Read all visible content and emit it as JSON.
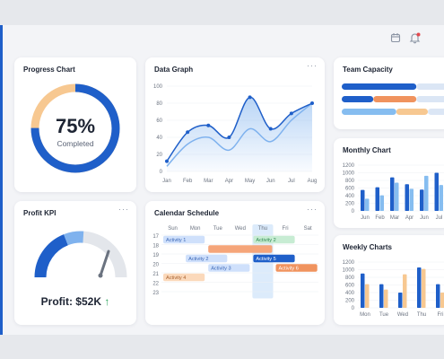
{
  "header": {
    "calendar_icon": "calendar-icon",
    "bell_icon": "bell-icon",
    "notification_color": "#e5484d"
  },
  "progress": {
    "title": "Progress Chart",
    "percent_label": "75%",
    "status_label": "Completed",
    "value": 0.75,
    "colors": {
      "filled": "#1f5fc9",
      "remaining": "#f7c891"
    }
  },
  "data_graph": {
    "title": "Data Graph",
    "more": "···",
    "chart_data": {
      "type": "line",
      "categories": [
        "Jan",
        "Feb",
        "Mar",
        "Apr",
        "May",
        "Jun",
        "Jul",
        "Aug"
      ],
      "ylim": [
        0,
        100
      ],
      "yticks": [
        "100",
        "80",
        "60",
        "40",
        "20",
        "0"
      ],
      "series": [
        {
          "values": [
            12,
            46,
            54,
            40,
            87,
            50,
            68,
            80
          ],
          "color": "#1f5fc9",
          "points": true
        },
        {
          "values": [
            6,
            32,
            40,
            25,
            50,
            35,
            60,
            80
          ],
          "color": "#7fb2ee",
          "points": false
        }
      ]
    }
  },
  "team_capacity": {
    "title": "Team Capacity",
    "bars": [
      {
        "segments": [
          {
            "value": 0.52,
            "color": "#1f5fc9"
          },
          {
            "value": 0.48,
            "color": "#dbe6f5"
          }
        ]
      },
      {
        "segments": [
          {
            "value": 0.22,
            "color": "#1f5fc9"
          },
          {
            "value": 0.3,
            "color": "#f0935e"
          },
          {
            "value": 0.48,
            "color": "#dbe6f5"
          }
        ]
      },
      {
        "segments": [
          {
            "value": 0.38,
            "color": "#86bdf0"
          },
          {
            "value": 0.22,
            "color": "#f7c891"
          },
          {
            "value": 0.4,
            "color": "#dbe6f5"
          }
        ]
      }
    ]
  },
  "monthly_chart": {
    "title": "Monthly Chart",
    "chart_data": {
      "type": "bar",
      "categories": [
        "Jun",
        "Feb",
        "Mar",
        "Apr",
        "Jun",
        "Jul",
        "Oct",
        "Dec"
      ],
      "yticks": [
        "1200",
        "1000",
        "800",
        "600",
        "400",
        "200",
        "0"
      ],
      "ylim": [
        0,
        1200
      ],
      "series": [
        {
          "color": "#1f5fc9",
          "values": [
            550,
            620,
            880,
            700,
            560,
            1000,
            820,
            1200
          ]
        },
        {
          "color": "#86bdf0",
          "values": [
            320,
            410,
            740,
            580,
            920,
            680,
            1080,
            900
          ]
        }
      ]
    }
  },
  "profit_kpi": {
    "title": "Profit KPI",
    "more": "···",
    "label": "Profit: $52K",
    "trend_arrow": "↑",
    "value": 0.52,
    "colors": {
      "dark": "#1f5fc9",
      "light": "#7fb2ee",
      "track": "#e3e6eb",
      "needle": "#6b7380",
      "arrow": "#27a35a"
    }
  },
  "calendar": {
    "title": "Calendar Schedule",
    "more": "···",
    "days": [
      "Sun",
      "Mon",
      "Tue",
      "Wed",
      "Thu",
      "Fri",
      "Sat"
    ],
    "highlight_day": 4,
    "hours": [
      "17",
      "18",
      "19",
      "20",
      "21",
      "22",
      "23"
    ],
    "events": [
      {
        "label": "Activity 1",
        "day": 0,
        "span": 2,
        "row": 0,
        "bg": "#cfe0fb",
        "fg": "#3b67b6"
      },
      {
        "label": "Activity 2",
        "day": 4,
        "span": 2,
        "row": 0,
        "bg": "#c7ecd3",
        "fg": "#2f8a52"
      },
      {
        "label": "",
        "day": 2,
        "span": 3,
        "row": 1,
        "bg": "#f5a57a",
        "fg": "#ffffff"
      },
      {
        "label": "Activity 2",
        "day": 1,
        "span": 2,
        "row": 2,
        "bg": "#cfe0fb",
        "fg": "#3b67b6"
      },
      {
        "label": "Activity 5",
        "day": 4,
        "span": 2,
        "row": 2,
        "bg": "#1f5fc9",
        "fg": "#ffffff"
      },
      {
        "label": "Activity 3",
        "day": 2,
        "span": 2,
        "row": 3,
        "bg": "#cfe0fb",
        "fg": "#3b67b6"
      },
      {
        "label": "Activity 6",
        "day": 5,
        "span": 2,
        "row": 3,
        "bg": "#f0935e",
        "fg": "#ffffff"
      },
      {
        "label": "Activity 4",
        "day": 0,
        "span": 2,
        "row": 4,
        "bg": "#fbd9bb",
        "fg": "#a86230"
      }
    ]
  },
  "weekly_charts": {
    "title": "Weekly Charts",
    "chart_data": {
      "type": "bar",
      "categories": [
        "Mon",
        "Tue",
        "Wed",
        "Thu",
        "Fri",
        "Sat"
      ],
      "yticks": [
        "1200",
        "1000",
        "800",
        "600",
        "400",
        "200",
        "0"
      ],
      "ylim": [
        0,
        1200
      ],
      "series": [
        {
          "color": "#1f5fc9",
          "values": [
            900,
            620,
            400,
            1060,
            620,
            1060
          ]
        },
        {
          "color": "#f7c891",
          "values": [
            620,
            480,
            880,
            1020,
            400,
            520
          ]
        }
      ]
    }
  }
}
